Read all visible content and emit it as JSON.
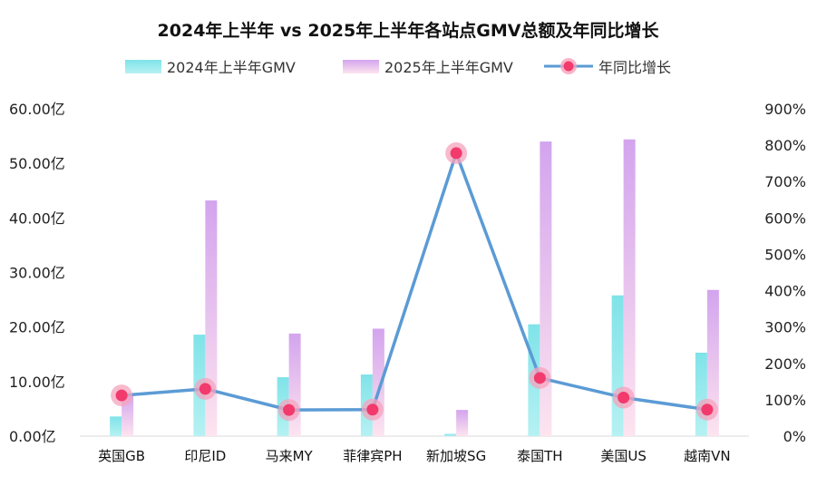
{
  "chart_data": {
    "type": "bar",
    "title": "2024年上半年 vs 2025年上半年各站点GMV总额及年同比增长",
    "categories": [
      "英国GB",
      "印尼ID",
      "马来MY",
      "菲律宾PH",
      "新加坡SG",
      "泰国TH",
      "美国US",
      "越南VN"
    ],
    "series": [
      {
        "name": "2024年上半年GMV",
        "kind": "bar",
        "axis": "left",
        "values": [
          3.6,
          18.6,
          10.8,
          11.3,
          0.4,
          20.5,
          25.8,
          15.3
        ]
      },
      {
        "name": "2025年上半年GMV",
        "kind": "bar",
        "axis": "left",
        "values": [
          7.6,
          43.2,
          18.8,
          19.7,
          4.8,
          54.0,
          54.4,
          26.8
        ]
      },
      {
        "name": "年同比增长",
        "kind": "line",
        "axis": "right",
        "values": [
          112,
          130,
          72,
          73,
          778,
          160,
          106,
          73
        ]
      }
    ],
    "y_left": {
      "min": 0,
      "max": 60,
      "step": 10,
      "tick_labels": [
        "0.00亿",
        "10.00亿",
        "20.00亿",
        "30.00亿",
        "40.00亿",
        "50.00亿",
        "60.00亿"
      ]
    },
    "y_right": {
      "min": 0,
      "max": 900,
      "step": 100,
      "tick_labels": [
        "0%",
        "100%",
        "200%",
        "300%",
        "400%",
        "500%",
        "600%",
        "700%",
        "800%",
        "900%"
      ]
    },
    "grid": false,
    "legend_position": "top-center",
    "colors": {
      "bar2024": "#86e6ea",
      "bar2025_top": "#d5a8ee",
      "bar2025_bottom": "#fbe2ef",
      "line": "#5b9bd5",
      "marker": "#f23a6d",
      "marker_halo": "#f6a3bc"
    }
  }
}
